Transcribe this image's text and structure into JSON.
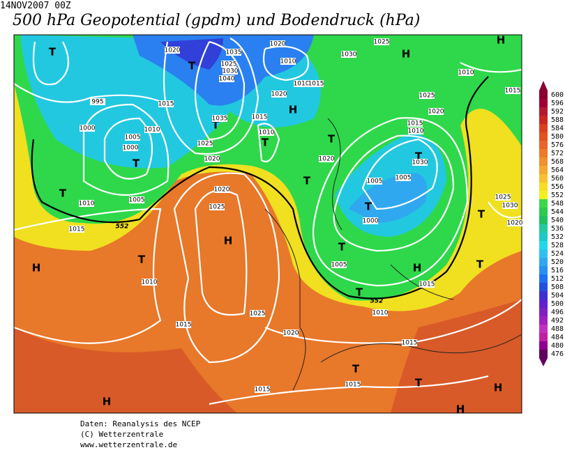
{
  "header": {
    "date": "14NOV2007 00Z",
    "title": "500 hPa Geopotential (gpdm) und Bodendruck (hPa)"
  },
  "legend": {
    "levels": [
      600,
      596,
      592,
      588,
      584,
      580,
      576,
      572,
      568,
      564,
      560,
      556,
      552,
      548,
      544,
      540,
      536,
      532,
      528,
      524,
      520,
      516,
      512,
      508,
      504,
      500,
      496,
      492,
      488,
      484,
      480,
      476
    ],
    "colors": [
      "#8b0030",
      "#a00032",
      "#b41830",
      "#c82820",
      "#d8401e",
      "#e0521e",
      "#e8642a",
      "#ec7a2a",
      "#f09030",
      "#f4a830",
      "#f8c030",
      "#f8dc28",
      "#f2f020",
      "#3ad848",
      "#2ccc50",
      "#22c060",
      "#26c8a0",
      "#20c8c8",
      "#22d8e8",
      "#30c0f0",
      "#30a8f0",
      "#2890f0",
      "#2070f0",
      "#2050e0",
      "#4030d0",
      "#6020d0",
      "#8020c0",
      "#a020c0",
      "#c030c0",
      "#c020a0",
      "#900090",
      "#600060"
    ]
  },
  "map": {
    "centers": [
      "T",
      "T",
      "H",
      "T",
      "T",
      "T",
      "H",
      "T",
      "H",
      "T",
      "T",
      "T",
      "T",
      "T",
      "T",
      "H",
      "T",
      "T",
      "H",
      "H",
      "T",
      "T",
      "H",
      "H",
      "H",
      "T"
    ],
    "isobar_labels": [
      1020,
      1035,
      1025,
      1030,
      1040,
      1020,
      1010,
      1010,
      1015,
      1025,
      1030,
      1010,
      1015,
      995,
      1015,
      1020,
      1015,
      1025,
      1020,
      1015,
      1010,
      1000,
      1010,
      1005,
      1010,
      1035,
      1000,
      1025,
      1020,
      1020,
      1030,
      1005,
      1005,
      1000,
      1020,
      1025,
      1005,
      1010,
      1015,
      1025,
      1030,
      1020,
      1005,
      1010,
      1015,
      1010,
      1015,
      1025,
      1020,
      1015,
      1015,
      1015
    ],
    "contour_labels": [
      552,
      552
    ]
  },
  "footer": {
    "lines": [
      "Daten: Reanalysis des NCEP",
      "(C) Wetterzentrale",
      "www.wetterzentrale.de"
    ]
  }
}
